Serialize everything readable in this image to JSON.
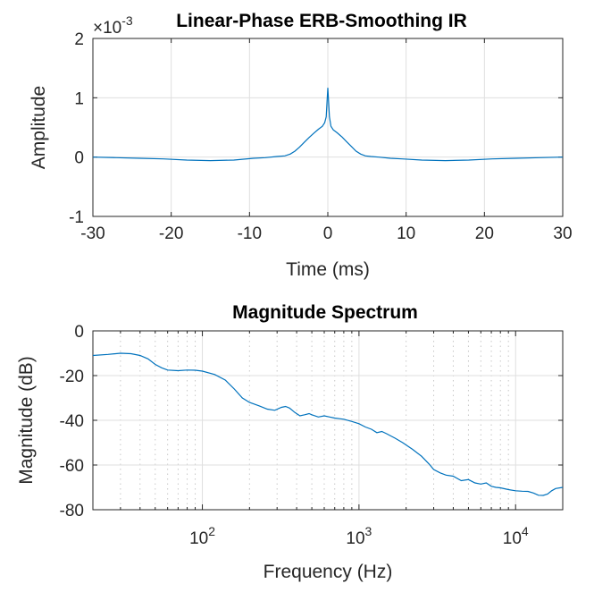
{
  "colors": {
    "series": "#0072bd",
    "axis": "#262626"
  },
  "chart_data": [
    {
      "type": "line",
      "title": "Linear-Phase ERB-Smoothing IR",
      "xlabel": "Time (ms)",
      "ylabel": "Amplitude",
      "y_exponent_label": "×10",
      "y_exponent_power": "-3",
      "xlim": [
        -30,
        30
      ],
      "ylim": [
        -1,
        2
      ],
      "xticks": [
        -30,
        -20,
        -10,
        0,
        10,
        20,
        30
      ],
      "xtick_labels": [
        "-30",
        "-20",
        "-10",
        "0",
        "10",
        "20",
        "30"
      ],
      "yticks": [
        -1,
        0,
        1,
        2
      ],
      "ytick_labels": [
        "-1",
        "0",
        "1",
        "2"
      ],
      "grid": true,
      "series": [
        {
          "x": [
            -30,
            -27,
            -24,
            -21,
            -18,
            -15,
            -12,
            -9.5,
            -8,
            -6.5,
            -5.5,
            -4.8,
            -4.2,
            -3.6,
            -3,
            -2.4,
            -1.8,
            -1.2,
            -0.7,
            -0.4,
            -0.2,
            0,
            0.2,
            0.4,
            0.7,
            1.2,
            1.8,
            2.4,
            3,
            3.6,
            4.2,
            4.8,
            5.5,
            6.5,
            8,
            9.5,
            12,
            15,
            18,
            21,
            24,
            27,
            30
          ],
          "y": [
            0.0,
            -0.01,
            -0.02,
            -0.03,
            -0.05,
            -0.06,
            -0.05,
            -0.02,
            -0.01,
            0.01,
            0.02,
            0.05,
            0.1,
            0.17,
            0.25,
            0.33,
            0.4,
            0.47,
            0.52,
            0.58,
            0.68,
            1.17,
            0.68,
            0.52,
            0.46,
            0.41,
            0.34,
            0.26,
            0.18,
            0.1,
            0.05,
            0.02,
            0.01,
            0.0,
            -0.02,
            -0.03,
            -0.05,
            -0.06,
            -0.05,
            -0.03,
            -0.02,
            -0.01,
            0.0
          ]
        }
      ]
    },
    {
      "type": "line",
      "title": "Magnitude Spectrum",
      "xlabel": "Frequency (Hz)",
      "ylabel": "Magnitude (dB)",
      "xscale": "log",
      "xlim": [
        20,
        20000
      ],
      "ylim": [
        -80,
        0
      ],
      "xticks": [
        100,
        1000,
        10000
      ],
      "xtick_bases": [
        "10",
        "10",
        "10"
      ],
      "xtick_powers": [
        "2",
        "3",
        "4"
      ],
      "yticks": [
        -80,
        -60,
        -40,
        -20,
        0
      ],
      "ytick_labels": [
        "-80",
        "-60",
        "-40",
        "-20",
        "0"
      ],
      "grid": true,
      "minor_grid": true,
      "series": [
        {
          "x": [
            20,
            25,
            30,
            35,
            40,
            45,
            50,
            55,
            60,
            70,
            80,
            90,
            100,
            120,
            140,
            160,
            180,
            200,
            230,
            260,
            290,
            320,
            340,
            360,
            390,
            420,
            450,
            480,
            500,
            550,
            600,
            650,
            700,
            800,
            900,
            1000,
            1100,
            1200,
            1300,
            1400,
            1500,
            1700,
            1900,
            2200,
            2500,
            2800,
            3000,
            3300,
            3600,
            4000,
            4500,
            5000,
            5500,
            6000,
            6500,
            7000,
            7500,
            8000,
            9000,
            10000,
            11000,
            12000,
            13000,
            14000,
            15000,
            16000,
            17000,
            18000,
            20000
          ],
          "y": [
            -11,
            -10.5,
            -10,
            -10.2,
            -11,
            -12.5,
            -15,
            -16.5,
            -17.5,
            -17.8,
            -17.5,
            -17.6,
            -18,
            -19.5,
            -22,
            -26,
            -30,
            -32,
            -33.5,
            -35,
            -35.5,
            -34.2,
            -33.8,
            -34.5,
            -36.5,
            -38,
            -37.5,
            -37,
            -37.5,
            -38.5,
            -38,
            -38.5,
            -39,
            -39.5,
            -40.5,
            -41.5,
            -43,
            -44,
            -45.5,
            -45,
            -46,
            -48,
            -50,
            -53,
            -56,
            -59.5,
            -62,
            -63.5,
            -64.5,
            -65,
            -67,
            -66.5,
            -68,
            -68.5,
            -68,
            -69.5,
            -70,
            -70.2,
            -71,
            -71.5,
            -71.7,
            -71.8,
            -72.5,
            -73.5,
            -73.6,
            -73,
            -71.5,
            -70.5,
            -70
          ]
        }
      ]
    }
  ]
}
